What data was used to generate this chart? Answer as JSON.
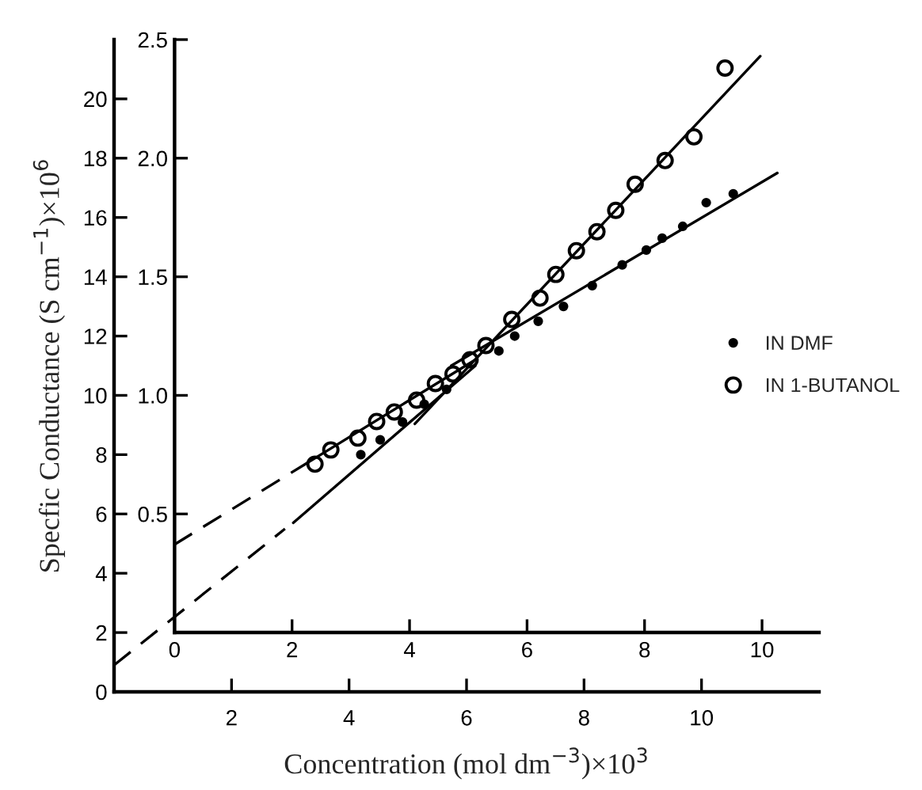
{
  "chart_data": {
    "type": "scatter",
    "xlabel": "Concentration (mol dm$^{−3}$)×10$^{3}$",
    "ylabel": "Specfic Conductance (S cm$^{−1}$)×10$^{6}$",
    "xlim": [
      0,
      12
    ],
    "xticks": [
      2,
      4,
      6,
      8,
      10
    ],
    "ylim": [
      0,
      22
    ],
    "yticks": [
      0,
      2,
      4,
      6,
      8,
      10,
      12,
      14,
      16,
      18,
      20
    ],
    "x2lim": [
      -1.03,
      10.97
    ],
    "x2ticks": [
      0,
      2,
      4,
      6,
      8,
      10
    ],
    "y2lim": [
      -0.25,
      2.5
    ],
    "y2ticks": [
      {
        "value": 0.5,
        "label": "0.5"
      },
      {
        "value": 1.0,
        "label": "1.0"
      },
      {
        "value": 1.5,
        "label": "1.5"
      },
      {
        "value": 2.0,
        "label": "2.0"
      },
      {
        "value": 2.5,
        "label": "2.5"
      }
    ],
    "legend": "right",
    "series": [
      {
        "name": "IN DMF",
        "marker": "circle",
        "color": "#000000",
        "x": [
          4.2,
          4.53,
          4.91,
          5.28,
          5.66,
          6.55,
          6.82,
          7.22,
          7.65,
          8.14,
          8.65,
          9.06,
          9.33,
          9.68,
          10.08,
          10.54
        ],
        "values": [
          8.0,
          8.5,
          9.1,
          9.7,
          10.2,
          11.5,
          12.0,
          12.5,
          13.0,
          13.7,
          14.4,
          14.9,
          15.3,
          15.7,
          16.5,
          16.8
        ]
      },
      {
        "name": "IN 1-BUTANOL",
        "marker": "circle",
        "axis": "y2",
        "color": "#000000",
        "x": [
          3.42,
          3.69,
          4.15,
          4.47,
          4.77,
          5.15,
          5.47,
          5.77,
          6.06,
          6.33,
          6.77,
          7.25,
          7.52,
          7.87,
          8.22,
          8.54,
          8.87,
          9.38,
          9.87,
          10.4
        ],
        "values": [
          0.71,
          0.77,
          0.82,
          0.89,
          0.93,
          0.98,
          1.05,
          1.09,
          1.15,
          1.21,
          1.32,
          1.41,
          1.51,
          1.61,
          1.69,
          1.78,
          1.89,
          1.99,
          2.09,
          2.38
        ]
      },
      {
        "type": "line",
        "line_style": "dashed",
        "color": "#000000",
        "x": [
          0,
          2.91
        ],
        "values": [
          0.9,
          5.5
        ]
      },
      {
        "type": "line",
        "line_style": "solid",
        "color": "#000000",
        "x": [
          3.05,
          6.15
        ],
        "values": [
          5.7,
          11.0
        ]
      },
      {
        "type": "line",
        "line_style": "solid",
        "color": "#000000",
        "x": [
          5.74,
          11.29
        ],
        "values": [
          11.0,
          17.5
        ]
      },
      {
        "type": "line",
        "line_style": "dashed",
        "axis": "y2",
        "color": "#000000",
        "x": [
          1.02,
          3.32
        ],
        "values": [
          0.37,
          0.72
        ]
      },
      {
        "type": "line",
        "line_style": "solid",
        "axis": "y2",
        "color": "#000000",
        "x": [
          3.32,
          6.15
        ],
        "values": [
          0.72,
          1.15
        ]
      },
      {
        "type": "line",
        "line_style": "solid",
        "axis": "y2",
        "color": "#000000",
        "x": [
          5.12,
          11.0
        ],
        "values": [
          0.88,
          2.43
        ]
      }
    ]
  }
}
